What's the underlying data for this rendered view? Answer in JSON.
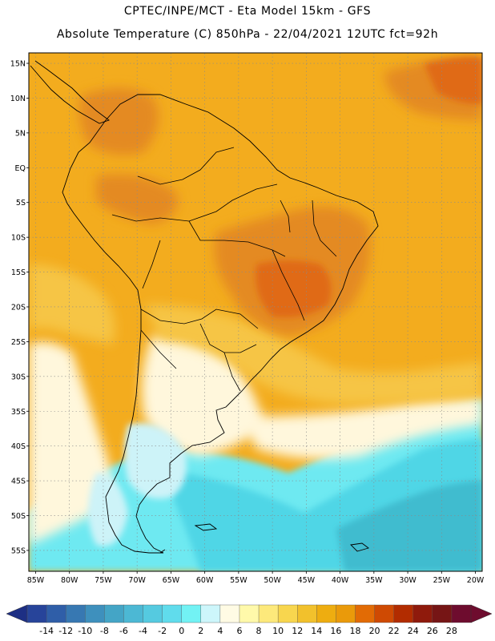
{
  "title": {
    "line1": "CPTEC/INPE/MCT -  Eta Model 15km - GFS",
    "line2": "Absolute Temperature (C) 850hPa - 22/04/2021 12UTC fct=92h"
  },
  "map": {
    "lon_min": -86,
    "lon_max": -19,
    "lat_min": -58,
    "lat_max": 16.5,
    "lat_ticks": [
      {
        "value": 15,
        "label": "15N"
      },
      {
        "value": 10,
        "label": "10N"
      },
      {
        "value": 5,
        "label": "5N"
      },
      {
        "value": 0,
        "label": "EQ"
      },
      {
        "value": -5,
        "label": "5S"
      },
      {
        "value": -10,
        "label": "10S"
      },
      {
        "value": -15,
        "label": "15S"
      },
      {
        "value": -20,
        "label": "20S"
      },
      {
        "value": -25,
        "label": "25S"
      },
      {
        "value": -30,
        "label": "30S"
      },
      {
        "value": -35,
        "label": "35S"
      },
      {
        "value": -40,
        "label": "40S"
      },
      {
        "value": -45,
        "label": "45S"
      },
      {
        "value": -50,
        "label": "50S"
      },
      {
        "value": -55,
        "label": "55S"
      }
    ],
    "lon_ticks": [
      {
        "value": -85,
        "label": "85W"
      },
      {
        "value": -80,
        "label": "80W"
      },
      {
        "value": -75,
        "label": "75W"
      },
      {
        "value": -70,
        "label": "70W"
      },
      {
        "value": -65,
        "label": "65W"
      },
      {
        "value": -60,
        "label": "60W"
      },
      {
        "value": -55,
        "label": "55W"
      },
      {
        "value": -50,
        "label": "50W"
      },
      {
        "value": -45,
        "label": "45W"
      },
      {
        "value": -40,
        "label": "40W"
      },
      {
        "value": -35,
        "label": "35W"
      },
      {
        "value": -30,
        "label": "30W"
      },
      {
        "value": -25,
        "label": "25W"
      },
      {
        "value": -20,
        "label": "20W"
      }
    ]
  },
  "colorbar": {
    "labels": [
      "-14",
      "-12",
      "-10",
      "-8",
      "-6",
      "-4",
      "-2",
      "0",
      "2",
      "4",
      "6",
      "8",
      "10",
      "12",
      "14",
      "16",
      "18",
      "20",
      "22",
      "24",
      "26",
      "28"
    ],
    "under_color": "#1d2f84",
    "over_color": "#6e0c2e",
    "colors": [
      "#27449a",
      "#2f5ea8",
      "#3778b2",
      "#3e90bd",
      "#44a5c6",
      "#4cb8d4",
      "#55cae0",
      "#60dcec",
      "#72f2f4",
      "#cdf6fb",
      "#fffbe4",
      "#fff9aa",
      "#fde97b",
      "#f8d64e",
      "#f2c12c",
      "#eead10",
      "#ea9a0a",
      "#e26b05",
      "#cf4a03",
      "#b22c00",
      "#8f1a0c",
      "#761515",
      "#6e0c2e"
    ]
  },
  "colors": {
    "orange_light": "#f3ac1e",
    "orange_dark": "#e48a20",
    "orange_deep": "#e06a14",
    "yellow": "#f6c544",
    "cream": "#fff7dc",
    "pale_blue": "#cdf3f8",
    "cyan": "#6ee9f1",
    "sky": "#50d6e6",
    "teal": "#3fbccf"
  }
}
